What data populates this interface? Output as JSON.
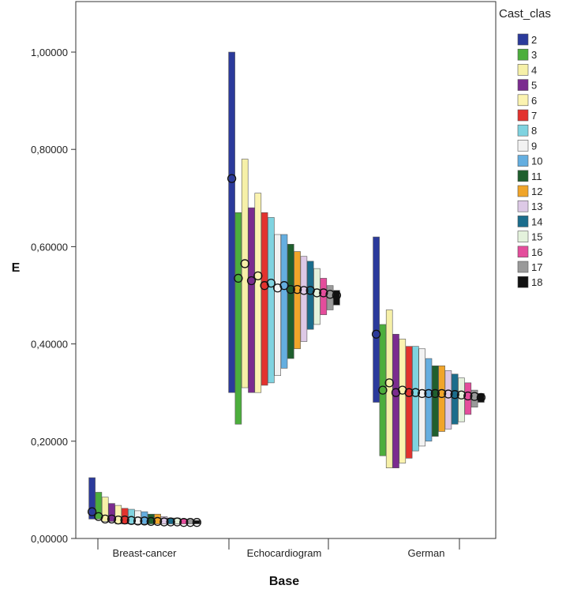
{
  "chart_data": {
    "type": "bar",
    "subtype": "high-low-mean",
    "xlabel": "Base",
    "ylabel": "E",
    "ylim": [
      0,
      1.1
    ],
    "yticks": [
      0,
      0.2,
      0.4,
      0.6,
      0.8,
      1.0
    ],
    "ytick_labels": [
      "0,00000",
      "0,20000",
      "0,40000",
      "0,60000",
      "0,80000",
      "1,00000"
    ],
    "categories": [
      "Breast-cancer",
      "Echocardiogram",
      "German"
    ],
    "legend": {
      "title": "Cast_clas",
      "position": "right",
      "items": [
        {
          "label": "2",
          "color": "#2b3a9b"
        },
        {
          "label": "3",
          "color": "#4cae3c"
        },
        {
          "label": "4",
          "color": "#f6f0a8"
        },
        {
          "label": "5",
          "color": "#7b2c8f"
        },
        {
          "label": "6",
          "color": "#fbf3b0"
        },
        {
          "label": "7",
          "color": "#e3322e"
        },
        {
          "label": "8",
          "color": "#7fd3e0"
        },
        {
          "label": "9",
          "color": "#f2f2f2"
        },
        {
          "label": "10",
          "color": "#64aee0"
        },
        {
          "label": "11",
          "color": "#1f5f2e"
        },
        {
          "label": "12",
          "color": "#f0a52a"
        },
        {
          "label": "13",
          "color": "#ddc9e6"
        },
        {
          "label": "14",
          "color": "#1b6d8c"
        },
        {
          "label": "15",
          "color": "#e4f2dc"
        },
        {
          "label": "16",
          "color": "#e44d9c"
        },
        {
          "label": "17",
          "color": "#9a9a9a"
        },
        {
          "label": "18",
          "color": "#111111"
        }
      ]
    },
    "series": [
      {
        "name": "2",
        "high": [
          0.125,
          1.0,
          0.62
        ],
        "low": [
          0.04,
          0.3,
          0.28
        ],
        "mean": [
          0.055,
          0.74,
          0.42
        ]
      },
      {
        "name": "3",
        "high": [
          0.095,
          0.67,
          0.44
        ],
        "low": [
          0.04,
          0.235,
          0.17
        ],
        "mean": [
          0.045,
          0.535,
          0.305
        ]
      },
      {
        "name": "4",
        "high": [
          0.085,
          0.78,
          0.47
        ],
        "low": [
          0.035,
          0.31,
          0.145
        ],
        "mean": [
          0.04,
          0.565,
          0.32
        ]
      },
      {
        "name": "5",
        "high": [
          0.072,
          0.68,
          0.42
        ],
        "low": [
          0.035,
          0.3,
          0.145
        ],
        "mean": [
          0.04,
          0.53,
          0.3
        ]
      },
      {
        "name": "6",
        "high": [
          0.068,
          0.71,
          0.41
        ],
        "low": [
          0.03,
          0.3,
          0.155
        ],
        "mean": [
          0.038,
          0.54,
          0.305
        ]
      },
      {
        "name": "7",
        "high": [
          0.062,
          0.67,
          0.395
        ],
        "low": [
          0.03,
          0.315,
          0.165
        ],
        "mean": [
          0.038,
          0.52,
          0.3
        ]
      },
      {
        "name": "8",
        "high": [
          0.06,
          0.66,
          0.395
        ],
        "low": [
          0.03,
          0.32,
          0.18
        ],
        "mean": [
          0.037,
          0.525,
          0.3
        ]
      },
      {
        "name": "9",
        "high": [
          0.057,
          0.625,
          0.39
        ],
        "low": [
          0.03,
          0.335,
          0.19
        ],
        "mean": [
          0.036,
          0.515,
          0.298
        ]
      },
      {
        "name": "10",
        "high": [
          0.055,
          0.625,
          0.37
        ],
        "low": [
          0.03,
          0.35,
          0.2
        ],
        "mean": [
          0.036,
          0.52,
          0.298
        ]
      },
      {
        "name": "11",
        "high": [
          0.05,
          0.605,
          0.355
        ],
        "low": [
          0.03,
          0.37,
          0.21
        ],
        "mean": [
          0.035,
          0.512,
          0.298
        ]
      },
      {
        "name": "12",
        "high": [
          0.05,
          0.59,
          0.355
        ],
        "low": [
          0.03,
          0.39,
          0.22
        ],
        "mean": [
          0.035,
          0.512,
          0.298
        ]
      },
      {
        "name": "13",
        "high": [
          0.045,
          0.58,
          0.345
        ],
        "low": [
          0.03,
          0.405,
          0.225
        ],
        "mean": [
          0.034,
          0.51,
          0.297
        ]
      },
      {
        "name": "14",
        "high": [
          0.042,
          0.57,
          0.338
        ],
        "low": [
          0.03,
          0.43,
          0.235
        ],
        "mean": [
          0.034,
          0.51,
          0.296
        ]
      },
      {
        "name": "15",
        "high": [
          0.042,
          0.555,
          0.33
        ],
        "low": [
          0.03,
          0.44,
          0.24
        ],
        "mean": [
          0.034,
          0.505,
          0.295
        ]
      },
      {
        "name": "16",
        "high": [
          0.04,
          0.535,
          0.32
        ],
        "low": [
          0.03,
          0.46,
          0.255
        ],
        "mean": [
          0.033,
          0.505,
          0.293
        ]
      },
      {
        "name": "17",
        "high": [
          0.038,
          0.52,
          0.305
        ],
        "low": [
          0.03,
          0.47,
          0.27
        ],
        "mean": [
          0.033,
          0.502,
          0.292
        ]
      },
      {
        "name": "18",
        "high": [
          0.037,
          0.51,
          0.298
        ],
        "low": [
          0.03,
          0.48,
          0.28
        ],
        "mean": [
          0.033,
          0.5,
          0.29
        ]
      }
    ]
  }
}
